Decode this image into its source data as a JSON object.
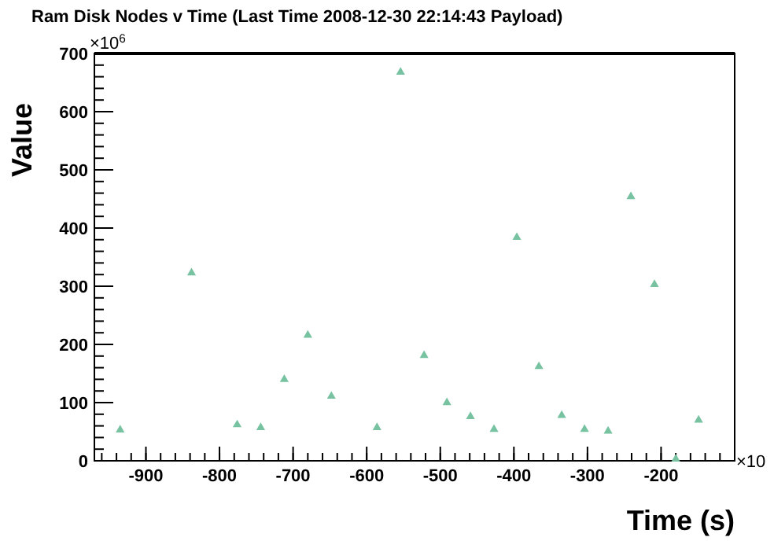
{
  "chart_data": {
    "type": "scatter",
    "title": "Ram Disk Nodes v Time (Last Time 2008-12-30 22:14:43 Payload)",
    "xlabel": "Time (s)",
    "ylabel": "Value",
    "annotations": [
      "×10$^{6}$",
      "×10"
    ],
    "marker": "triangle",
    "grid": false,
    "xlim": [
      -970,
      -100
    ],
    "xticks": [
      -900,
      -800,
      -700,
      -600,
      -500,
      -400,
      -300,
      -200
    ],
    "ylim": [
      0,
      700
    ],
    "yticks": [
      0,
      100,
      200,
      300,
      400,
      500,
      600,
      700
    ],
    "series": [
      {
        "color": "#77c2a0",
        "x": [
          -935,
          -838,
          -776,
          -744,
          -712,
          -680,
          -648,
          -586,
          -554,
          -522,
          -491,
          -459,
          -427,
          -396,
          -366,
          -335,
          -304,
          -272,
          -241,
          -209,
          -180,
          -149
        ],
        "values": [
          53,
          323,
          62,
          57,
          140,
          216,
          111,
          57,
          668,
          181,
          100,
          76,
          54,
          384,
          162,
          78,
          54,
          51,
          454,
          303,
          3,
          70
        ]
      }
    ]
  }
}
